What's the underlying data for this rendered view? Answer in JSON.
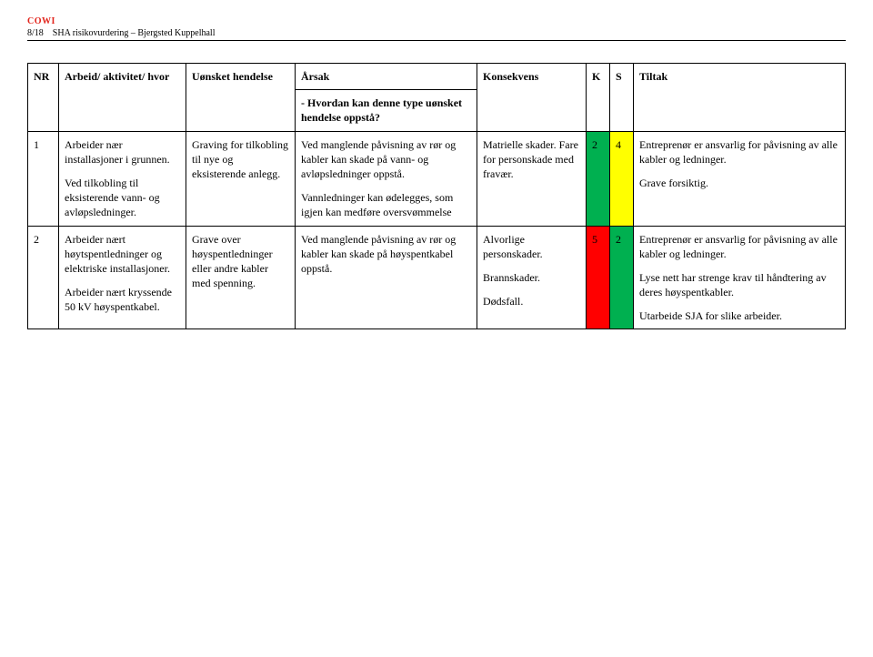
{
  "colors": {
    "brand": "#e2231a",
    "k_green": "#00b050",
    "s_yellow": "#ffff00",
    "k_red": "#ff0000",
    "s_green2": "#00b050"
  },
  "header": {
    "brand": "COWI",
    "page_label": "8/18",
    "doc_title": "SHA risikovurdering – Bjergsted Kuppelhall"
  },
  "table": {
    "headers": {
      "nr": "NR",
      "activity": "Arbeid/ aktivitet/ hvor",
      "event": "Uønsket hendelse",
      "cause": "Årsak",
      "cause_sub": "- Hvordan kan denne type uønsket hendelse oppstå?",
      "consequence": "Konsekvens",
      "k": "K",
      "s": "S",
      "tiltak": "Tiltak"
    },
    "rows": [
      {
        "nr": "1",
        "activity_p1": "Arbeider nær installasjoner i grunnen.",
        "activity_p2": "Ved tilkobling til eksisterende vann- og avløpsledninger.",
        "event": "Graving for tilkobling til nye og eksisterende anlegg.",
        "cause_p1": "Ved manglende påvisning av rør og kabler kan skade på vann- og avløpsledninger oppstå.",
        "cause_p2": "Vannledninger kan ødelegges, som igjen kan medføre oversvømmelse",
        "consequence": "Matrielle skader. Fare for personskade med fravær.",
        "k": "2",
        "s": "4",
        "k_bg_key": "k_green",
        "s_bg_key": "s_yellow",
        "tiltak_p1": "Entreprenør er ansvarlig for påvisning av alle kabler og ledninger.",
        "tiltak_p2": "Grave forsiktig."
      },
      {
        "nr": "2",
        "activity_p1": "Arbeider nært høytspentledninger og elektriske installasjoner.",
        "activity_p2": "Arbeider nært kryssende 50 kV høyspentkabel.",
        "event": "Grave over høyspentledninger eller andre kabler med spenning.",
        "cause_p1": "Ved manglende påvisning av rør og kabler kan skade på høyspentkabel oppstå.",
        "cause_p2": "",
        "consequence_p1": "Alvorlige personskader.",
        "consequence_p2": "Brannskader.",
        "consequence_p3": "Dødsfall.",
        "k": "5",
        "s": "2",
        "k_bg_key": "k_red",
        "s_bg_key": "s_green2",
        "tiltak_p1": "Entreprenør er ansvarlig for påvisning av alle kabler og ledninger.",
        "tiltak_p2": "Lyse nett har strenge krav til håndtering av deres høyspentkabler.",
        "tiltak_p3": "Utarbeide SJA for slike arbeider."
      }
    ]
  }
}
